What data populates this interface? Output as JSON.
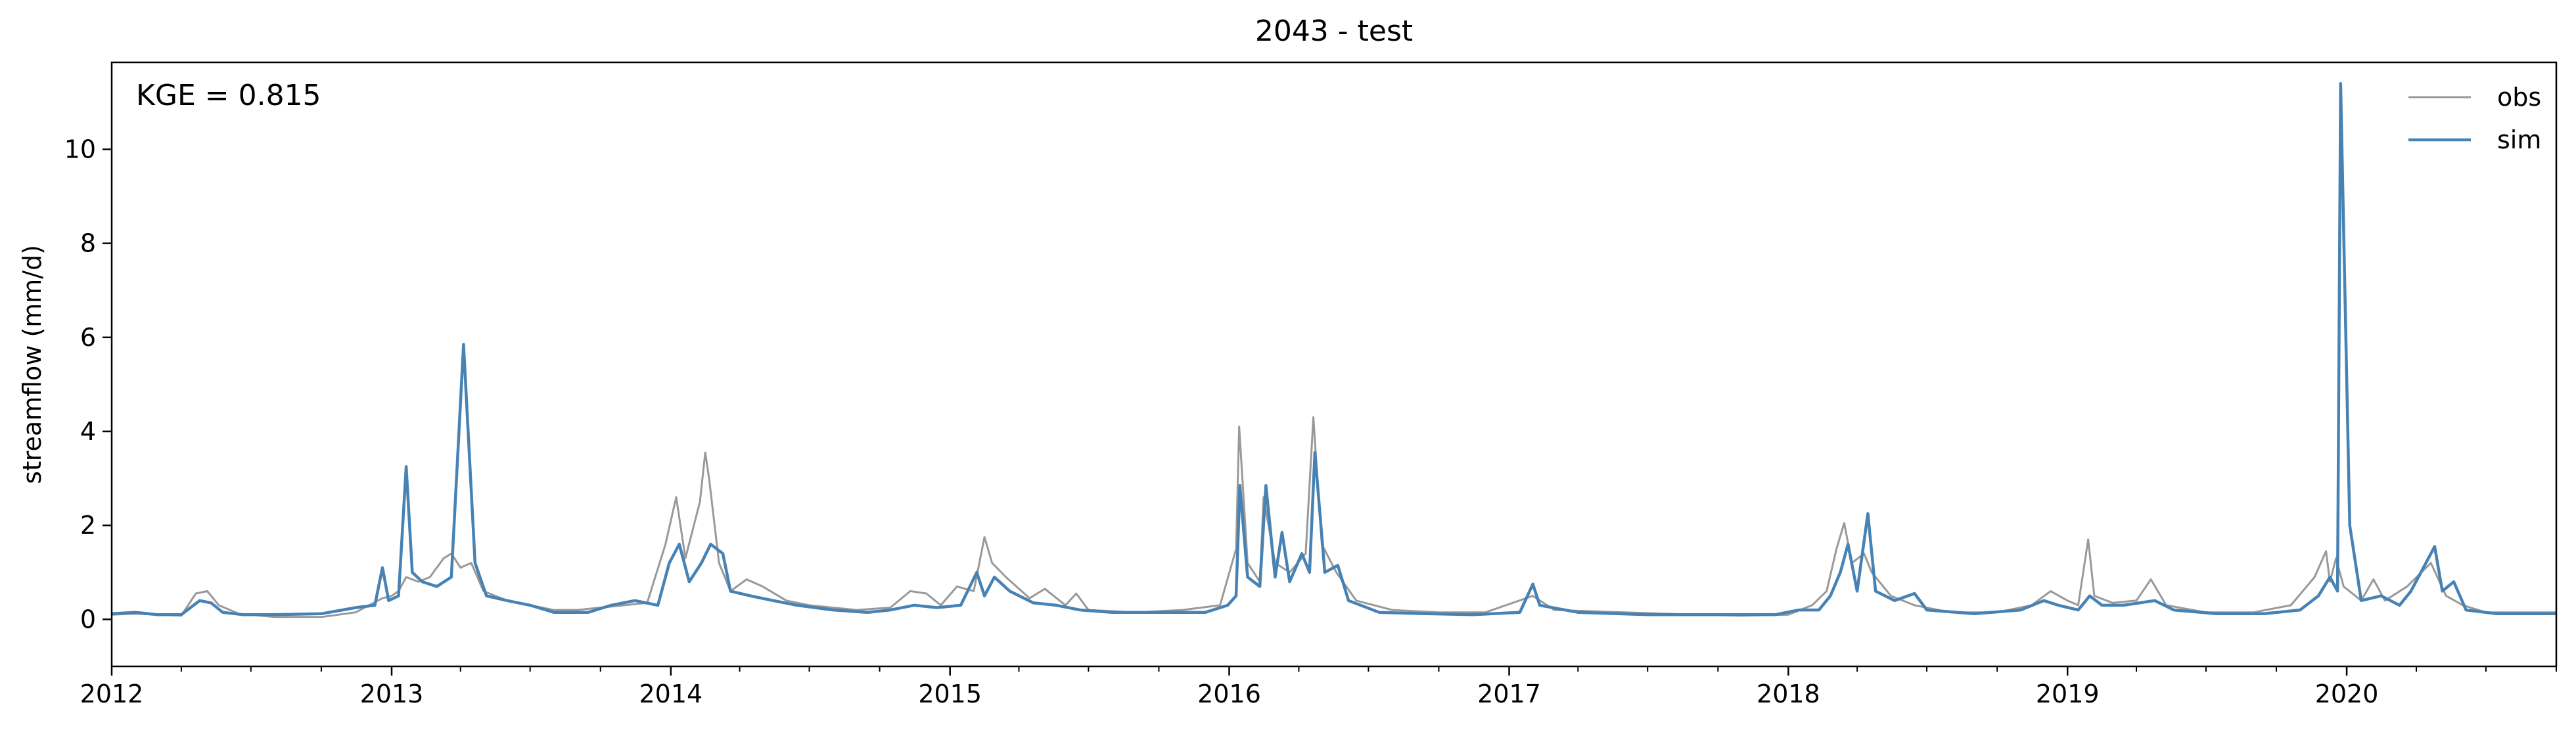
{
  "chart_data": {
    "type": "line",
    "title": "2043 - test",
    "xlabel": "",
    "ylabel": "streamflow (mm/d)",
    "annotation": "KGE = 0.815",
    "x_range": [
      "2012-01-01",
      "2020-10-01"
    ],
    "ylim": [
      -1.0,
      11.85
    ],
    "x_ticks": [
      "2012",
      "2013",
      "2014",
      "2015",
      "2016",
      "2017",
      "2018",
      "2019",
      "2020"
    ],
    "y_ticks": [
      0,
      2,
      4,
      6,
      8,
      10
    ],
    "grid": false,
    "legend": {
      "position": "top-right",
      "entries": [
        "obs",
        "sim"
      ]
    },
    "colors": {
      "obs": "#999999",
      "sim": "#4682b4"
    },
    "series": [
      {
        "name": "obs",
        "color": "#999999",
        "points": [
          [
            "2012-01-01",
            0.1
          ],
          [
            "2012-02-01",
            0.12
          ],
          [
            "2012-03-01",
            0.1
          ],
          [
            "2012-04-01",
            0.08
          ],
          [
            "2012-04-20",
            0.55
          ],
          [
            "2012-05-05",
            0.6
          ],
          [
            "2012-05-20",
            0.3
          ],
          [
            "2012-06-15",
            0.12
          ],
          [
            "2012-08-01",
            0.05
          ],
          [
            "2012-10-01",
            0.05
          ],
          [
            "2012-11-15",
            0.15
          ],
          [
            "2012-12-20",
            0.45
          ],
          [
            "2013-01-01",
            0.5
          ],
          [
            "2013-01-10",
            0.6
          ],
          [
            "2013-01-20",
            0.9
          ],
          [
            "2013-02-05",
            0.8
          ],
          [
            "2013-02-20",
            0.9
          ],
          [
            "2013-03-10",
            1.3
          ],
          [
            "2013-03-20",
            1.4
          ],
          [
            "2013-04-01",
            1.1
          ],
          [
            "2013-04-15",
            1.2
          ],
          [
            "2013-05-01",
            0.6
          ],
          [
            "2013-06-01",
            0.4
          ],
          [
            "2013-07-01",
            0.3
          ],
          [
            "2013-08-01",
            0.2
          ],
          [
            "2013-09-01",
            0.2
          ],
          [
            "2013-10-01",
            0.25
          ],
          [
            "2013-11-01",
            0.3
          ],
          [
            "2013-12-01",
            0.35
          ],
          [
            "2013-12-25",
            1.6
          ],
          [
            "2014-01-08",
            2.6
          ],
          [
            "2014-01-20",
            1.3
          ],
          [
            "2014-02-08",
            2.5
          ],
          [
            "2014-02-15",
            3.55
          ],
          [
            "2014-02-20",
            3.0
          ],
          [
            "2014-03-05",
            1.2
          ],
          [
            "2014-03-20",
            0.6
          ],
          [
            "2014-04-10",
            0.85
          ],
          [
            "2014-05-01",
            0.7
          ],
          [
            "2014-06-01",
            0.4
          ],
          [
            "2014-07-01",
            0.3
          ],
          [
            "2014-09-01",
            0.2
          ],
          [
            "2014-10-15",
            0.25
          ],
          [
            "2014-11-10",
            0.6
          ],
          [
            "2014-12-01",
            0.55
          ],
          [
            "2014-12-20",
            0.3
          ],
          [
            "2015-01-10",
            0.7
          ],
          [
            "2015-02-01",
            0.6
          ],
          [
            "2015-02-15",
            1.75
          ],
          [
            "2015-02-25",
            1.2
          ],
          [
            "2015-03-15",
            0.9
          ],
          [
            "2015-04-15",
            0.45
          ],
          [
            "2015-05-05",
            0.65
          ],
          [
            "2015-06-01",
            0.3
          ],
          [
            "2015-06-15",
            0.55
          ],
          [
            "2015-07-01",
            0.2
          ],
          [
            "2015-09-01",
            0.15
          ],
          [
            "2015-11-01",
            0.2
          ],
          [
            "2015-12-20",
            0.3
          ],
          [
            "2016-01-10",
            1.5
          ],
          [
            "2016-01-14",
            4.1
          ],
          [
            "2016-01-25",
            1.2
          ],
          [
            "2016-02-10",
            0.8
          ],
          [
            "2016-02-15",
            2.6
          ],
          [
            "2016-03-01",
            1.2
          ],
          [
            "2016-03-20",
            1.0
          ],
          [
            "2016-04-10",
            1.4
          ],
          [
            "2016-04-20",
            4.3
          ],
          [
            "2016-05-01",
            1.6
          ],
          [
            "2016-05-20",
            1.0
          ],
          [
            "2016-06-15",
            0.4
          ],
          [
            "2016-08-01",
            0.2
          ],
          [
            "2016-10-01",
            0.15
          ],
          [
            "2016-12-01",
            0.15
          ],
          [
            "2017-02-01",
            0.5
          ],
          [
            "2017-03-01",
            0.2
          ],
          [
            "2017-06-01",
            0.15
          ],
          [
            "2017-09-01",
            0.1
          ],
          [
            "2017-11-01",
            0.08
          ],
          [
            "2018-01-01",
            0.1
          ],
          [
            "2018-02-01",
            0.3
          ],
          [
            "2018-02-20",
            0.6
          ],
          [
            "2018-03-05",
            1.5
          ],
          [
            "2018-03-15",
            2.05
          ],
          [
            "2018-03-25",
            1.2
          ],
          [
            "2018-04-10",
            1.4
          ],
          [
            "2018-04-20",
            1.0
          ],
          [
            "2018-05-15",
            0.5
          ],
          [
            "2018-06-15",
            0.3
          ],
          [
            "2018-08-01",
            0.15
          ],
          [
            "2018-10-01",
            0.15
          ],
          [
            "2018-11-15",
            0.3
          ],
          [
            "2018-12-10",
            0.6
          ],
          [
            "2019-01-01",
            0.4
          ],
          [
            "2019-01-15",
            0.3
          ],
          [
            "2019-01-28",
            1.7
          ],
          [
            "2019-02-05",
            0.5
          ],
          [
            "2019-03-01",
            0.35
          ],
          [
            "2019-04-01",
            0.4
          ],
          [
            "2019-04-20",
            0.85
          ],
          [
            "2019-05-10",
            0.3
          ],
          [
            "2019-07-01",
            0.15
          ],
          [
            "2019-09-01",
            0.15
          ],
          [
            "2019-10-20",
            0.3
          ],
          [
            "2019-11-20",
            0.9
          ],
          [
            "2019-12-05",
            1.45
          ],
          [
            "2019-12-10",
            0.8
          ],
          [
            "2019-12-18",
            1.3
          ],
          [
            "2019-12-28",
            0.7
          ],
          [
            "2020-01-20",
            0.4
          ],
          [
            "2020-02-05",
            0.85
          ],
          [
            "2020-02-20",
            0.4
          ],
          [
            "2020-03-20",
            0.7
          ],
          [
            "2020-04-20",
            1.2
          ],
          [
            "2020-05-10",
            0.5
          ],
          [
            "2020-06-01",
            0.3
          ],
          [
            "2020-07-01",
            0.15
          ],
          [
            "2020-08-15",
            0.15
          ],
          [
            "2020-10-01",
            0.15
          ]
        ]
      },
      {
        "name": "sim",
        "color": "#4682b4",
        "points": [
          [
            "2012-01-01",
            0.12
          ],
          [
            "2012-02-01",
            0.15
          ],
          [
            "2012-03-01",
            0.1
          ],
          [
            "2012-04-01",
            0.1
          ],
          [
            "2012-04-25",
            0.4
          ],
          [
            "2012-05-10",
            0.35
          ],
          [
            "2012-05-25",
            0.15
          ],
          [
            "2012-06-20",
            0.1
          ],
          [
            "2012-08-01",
            0.1
          ],
          [
            "2012-10-01",
            0.12
          ],
          [
            "2012-11-15",
            0.25
          ],
          [
            "2012-12-10",
            0.3
          ],
          [
            "2012-12-20",
            1.1
          ],
          [
            "2012-12-28",
            0.4
          ],
          [
            "2013-01-10",
            0.5
          ],
          [
            "2013-01-20",
            3.25
          ],
          [
            "2013-01-28",
            1.0
          ],
          [
            "2013-02-10",
            0.8
          ],
          [
            "2013-03-01",
            0.7
          ],
          [
            "2013-03-20",
            0.9
          ],
          [
            "2013-04-05",
            5.85
          ],
          [
            "2013-04-20",
            1.2
          ],
          [
            "2013-05-05",
            0.5
          ],
          [
            "2013-06-01",
            0.4
          ],
          [
            "2013-07-01",
            0.3
          ],
          [
            "2013-08-01",
            0.15
          ],
          [
            "2013-09-15",
            0.15
          ],
          [
            "2013-10-15",
            0.3
          ],
          [
            "2013-11-15",
            0.4
          ],
          [
            "2013-12-15",
            0.3
          ],
          [
            "2013-12-30",
            1.2
          ],
          [
            "2014-01-12",
            1.6
          ],
          [
            "2014-01-25",
            0.8
          ],
          [
            "2014-02-10",
            1.2
          ],
          [
            "2014-02-22",
            1.6
          ],
          [
            "2014-03-10",
            1.4
          ],
          [
            "2014-03-20",
            0.6
          ],
          [
            "2014-04-15",
            0.5
          ],
          [
            "2014-05-15",
            0.4
          ],
          [
            "2014-06-15",
            0.3
          ],
          [
            "2014-08-01",
            0.2
          ],
          [
            "2014-09-15",
            0.15
          ],
          [
            "2014-10-15",
            0.2
          ],
          [
            "2014-11-15",
            0.3
          ],
          [
            "2014-12-15",
            0.25
          ],
          [
            "2015-01-15",
            0.3
          ],
          [
            "2015-02-05",
            1.0
          ],
          [
            "2015-02-15",
            0.5
          ],
          [
            "2015-02-28",
            0.9
          ],
          [
            "2015-03-20",
            0.6
          ],
          [
            "2015-04-20",
            0.35
          ],
          [
            "2015-05-20",
            0.3
          ],
          [
            "2015-06-20",
            0.2
          ],
          [
            "2015-08-01",
            0.15
          ],
          [
            "2015-10-01",
            0.15
          ],
          [
            "2015-12-01",
            0.15
          ],
          [
            "2015-12-30",
            0.3
          ],
          [
            "2016-01-10",
            0.5
          ],
          [
            "2016-01-15",
            2.85
          ],
          [
            "2016-01-25",
            0.9
          ],
          [
            "2016-02-10",
            0.7
          ],
          [
            "2016-02-18",
            2.85
          ],
          [
            "2016-03-01",
            0.9
          ],
          [
            "2016-03-10",
            1.85
          ],
          [
            "2016-03-20",
            0.8
          ],
          [
            "2016-04-05",
            1.4
          ],
          [
            "2016-04-15",
            1.0
          ],
          [
            "2016-04-22",
            3.55
          ],
          [
            "2016-05-05",
            1.0
          ],
          [
            "2016-05-22",
            1.15
          ],
          [
            "2016-06-05",
            0.4
          ],
          [
            "2016-07-15",
            0.15
          ],
          [
            "2016-09-15",
            0.12
          ],
          [
            "2016-11-15",
            0.1
          ],
          [
            "2017-01-15",
            0.15
          ],
          [
            "2017-02-01",
            0.75
          ],
          [
            "2017-02-10",
            0.3
          ],
          [
            "2017-04-01",
            0.15
          ],
          [
            "2017-07-01",
            0.1
          ],
          [
            "2017-10-01",
            0.1
          ],
          [
            "2017-12-15",
            0.1
          ],
          [
            "2018-01-15",
            0.2
          ],
          [
            "2018-02-10",
            0.2
          ],
          [
            "2018-02-25",
            0.5
          ],
          [
            "2018-03-10",
            1.0
          ],
          [
            "2018-03-20",
            1.6
          ],
          [
            "2018-04-01",
            0.6
          ],
          [
            "2018-04-15",
            2.25
          ],
          [
            "2018-04-25",
            0.6
          ],
          [
            "2018-05-20",
            0.4
          ],
          [
            "2018-06-15",
            0.55
          ],
          [
            "2018-07-01",
            0.2
          ],
          [
            "2018-09-01",
            0.12
          ],
          [
            "2018-11-01",
            0.2
          ],
          [
            "2018-12-01",
            0.4
          ],
          [
            "2018-12-20",
            0.3
          ],
          [
            "2019-01-15",
            0.2
          ],
          [
            "2019-01-30",
            0.5
          ],
          [
            "2019-02-15",
            0.3
          ],
          [
            "2019-03-15",
            0.3
          ],
          [
            "2019-04-25",
            0.4
          ],
          [
            "2019-05-20",
            0.2
          ],
          [
            "2019-07-15",
            0.12
          ],
          [
            "2019-09-15",
            0.12
          ],
          [
            "2019-11-01",
            0.2
          ],
          [
            "2019-11-25",
            0.5
          ],
          [
            "2019-12-10",
            0.9
          ],
          [
            "2019-12-20",
            0.6
          ],
          [
            "2019-12-24",
            11.4
          ],
          [
            "2020-01-05",
            2.0
          ],
          [
            "2020-01-20",
            0.4
          ],
          [
            "2020-02-15",
            0.5
          ],
          [
            "2020-03-10",
            0.3
          ],
          [
            "2020-03-25",
            0.6
          ],
          [
            "2020-04-25",
            1.55
          ],
          [
            "2020-05-05",
            0.6
          ],
          [
            "2020-05-20",
            0.8
          ],
          [
            "2020-06-05",
            0.2
          ],
          [
            "2020-07-15",
            0.12
          ],
          [
            "2020-09-01",
            0.12
          ],
          [
            "2020-10-01",
            0.12
          ]
        ]
      }
    ]
  }
}
